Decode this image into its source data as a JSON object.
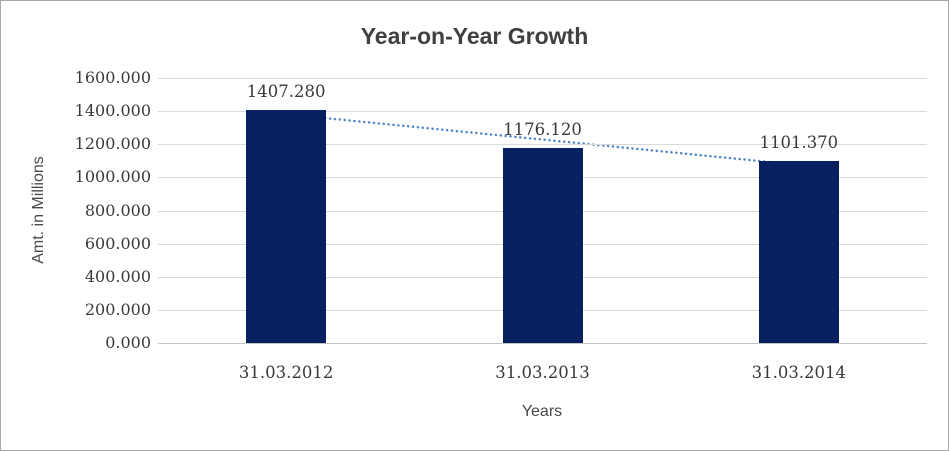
{
  "frame": {
    "background": "#ffffff",
    "border_color": "#a8a8a8"
  },
  "chart_data": {
    "type": "bar",
    "title": "Year-on-Year Growth",
    "categories": [
      "31.03.2012",
      "31.03.2013",
      "31.03.2014"
    ],
    "values": [
      1407.28,
      1176.12,
      1101.37
    ],
    "data_labels": [
      "1407.280",
      "1176.120",
      "1101.370"
    ],
    "xlabel": "Years",
    "ylabel": "Amt. in Millions",
    "ylim": [
      0,
      1600
    ],
    "ytick_step": 200,
    "ytick_labels": [
      "0.000",
      "200.000",
      "400.000",
      "600.000",
      "800.000",
      "1000.000",
      "1200.000",
      "1400.000",
      "1600.000"
    ],
    "grid": true,
    "legend_position": "none",
    "bar_color": "#072160",
    "gridline_color": "#d9d9d9",
    "axis_line_color": "#c3c3c3",
    "label_color": "#3a3a3a",
    "title_color": "#404040",
    "trendline": {
      "type": "linear",
      "style": "dotted",
      "color": "#4e86c6"
    }
  }
}
